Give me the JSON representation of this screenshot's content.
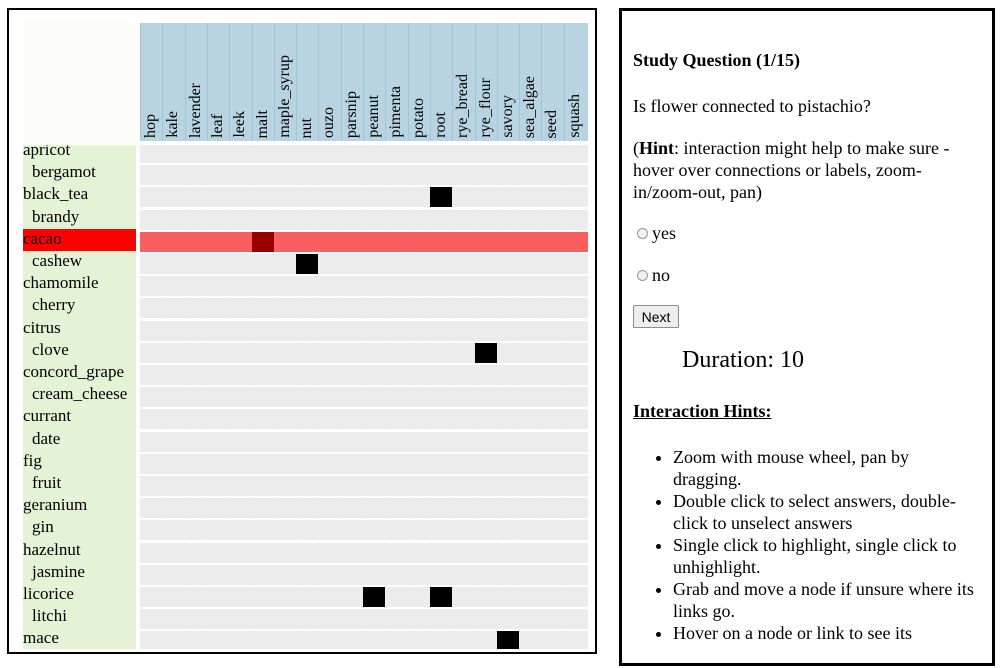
{
  "matrix": {
    "columns": [
      "hop",
      "kale",
      "lavender",
      "leaf",
      "leek",
      "malt",
      "maple_syrup",
      "nut",
      "ouzo",
      "parsnip",
      "peanut",
      "pimenta",
      "potato",
      "root",
      "rye_bread",
      "rye_flour",
      "savory",
      "sea_algae",
      "seed",
      "squash"
    ],
    "rows": [
      {
        "label": "apricot",
        "indent": false
      },
      {
        "label": "bergamot",
        "indent": true
      },
      {
        "label": "black_tea",
        "indent": false
      },
      {
        "label": "brandy",
        "indent": true
      },
      {
        "label": "cacao",
        "indent": false,
        "highlighted": true
      },
      {
        "label": "cashew",
        "indent": true
      },
      {
        "label": "chamomile",
        "indent": false
      },
      {
        "label": "cherry",
        "indent": true
      },
      {
        "label": "citrus",
        "indent": false
      },
      {
        "label": "clove",
        "indent": true
      },
      {
        "label": "concord_grape",
        "indent": false
      },
      {
        "label": "cream_cheese",
        "indent": true
      },
      {
        "label": "currant",
        "indent": false
      },
      {
        "label": "date",
        "indent": true
      },
      {
        "label": "fig",
        "indent": false
      },
      {
        "label": "fruit",
        "indent": true
      },
      {
        "label": "geranium",
        "indent": false
      },
      {
        "label": "gin",
        "indent": true
      },
      {
        "label": "hazelnut",
        "indent": false
      },
      {
        "label": "jasmine",
        "indent": true
      },
      {
        "label": "licorice",
        "indent": false
      },
      {
        "label": "litchi",
        "indent": true
      },
      {
        "label": "mace",
        "indent": false
      }
    ],
    "links": [
      {
        "row": "black_tea",
        "col": "root"
      },
      {
        "row": "cacao",
        "col": "malt",
        "selected": true
      },
      {
        "row": "cashew",
        "col": "nut"
      },
      {
        "row": "clove",
        "col": "rye_flour"
      },
      {
        "row": "licorice",
        "col": "peanut"
      },
      {
        "row": "licorice",
        "col": "root"
      },
      {
        "row": "mace",
        "col": "savory"
      }
    ]
  },
  "question": {
    "title": "Study Question (1/15)",
    "text": "Is flower connected to pistachio?",
    "hint_open": "(",
    "hint_bold": "Hint",
    "hint_rest": ": interaction might help to make sure - hover over connections or labels, zoom-in/zoom-out, pan)",
    "options": [
      "yes",
      "no"
    ],
    "next_label": "Next",
    "duration": "Duration: 10"
  },
  "interaction_hints": {
    "title": "Interaction Hints:",
    "items": [
      "Zoom with mouse wheel, pan by dragging.",
      "Double click to select answers, double-click to unselect answers",
      "Single click to highlight, single click to unhighlight.",
      "Grab and move a node if unsure where its links go.",
      "Hover on a node or link to see its"
    ]
  },
  "colors": {
    "header_bg": "#b8d4e2",
    "row_label_bg": "#e4f2d6",
    "highlight_label": "#ff0000",
    "highlight_row": "#f86060",
    "selected_cell": "#990000",
    "link_cell": "#000000"
  }
}
